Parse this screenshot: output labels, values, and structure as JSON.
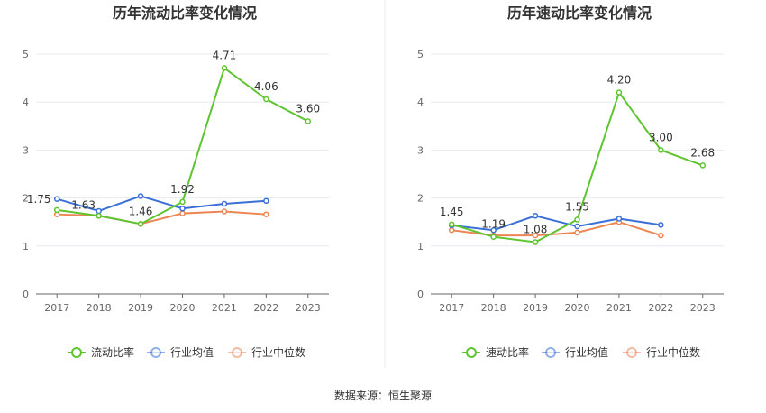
{
  "chart_data": [
    {
      "type": "line",
      "title": "历年流动比率变化情况",
      "categories": [
        "2017",
        "2018",
        "2019",
        "2020",
        "2021",
        "2022",
        "2023"
      ],
      "ylim": [
        0,
        5
      ],
      "yticks": [
        "0",
        "1",
        "2",
        "3",
        "4",
        "5"
      ],
      "grid": true,
      "legend_position": "bottom",
      "series": [
        {
          "name": "流动比率",
          "color": "#5ec42f",
          "values": [
            1.75,
            1.63,
            1.46,
            1.92,
            4.71,
            4.06,
            3.6
          ],
          "labels": [
            "1.75",
            "1.63",
            "1.46",
            "1.92",
            "4.71",
            "4.06",
            "3.60"
          ]
        },
        {
          "name": "行业均值",
          "color": "#3b6fd8",
          "values": [
            1.98,
            1.73,
            2.04,
            1.78,
            1.88,
            1.94,
            null
          ]
        },
        {
          "name": "行业中位数",
          "color": "#ed8553",
          "values": [
            1.66,
            1.63,
            1.46,
            1.68,
            1.72,
            1.66,
            null
          ]
        }
      ]
    },
    {
      "type": "line",
      "title": "历年速动比率变化情况",
      "categories": [
        "2017",
        "2018",
        "2019",
        "2020",
        "2021",
        "2022",
        "2023"
      ],
      "ylim": [
        0,
        5
      ],
      "yticks": [
        "0",
        "1",
        "2",
        "3",
        "4",
        "5"
      ],
      "grid": true,
      "legend_position": "bottom",
      "series": [
        {
          "name": "速动比率",
          "color": "#5ec42f",
          "values": [
            1.45,
            1.19,
            1.08,
            1.55,
            4.2,
            3.0,
            2.68
          ],
          "labels": [
            "1.45",
            "1.19",
            "1.08",
            "1.55",
            "4.20",
            "3.00",
            "2.68"
          ]
        },
        {
          "name": "行业均值",
          "color": "#3b6fd8",
          "values": [
            1.43,
            1.33,
            1.63,
            1.41,
            1.57,
            1.44,
            null
          ]
        },
        {
          "name": "行业中位数",
          "color": "#ed8553",
          "values": [
            1.33,
            1.22,
            1.22,
            1.28,
            1.5,
            1.22,
            null
          ]
        }
      ]
    }
  ],
  "footer": {
    "source": "数据来源：恒生聚源"
  }
}
